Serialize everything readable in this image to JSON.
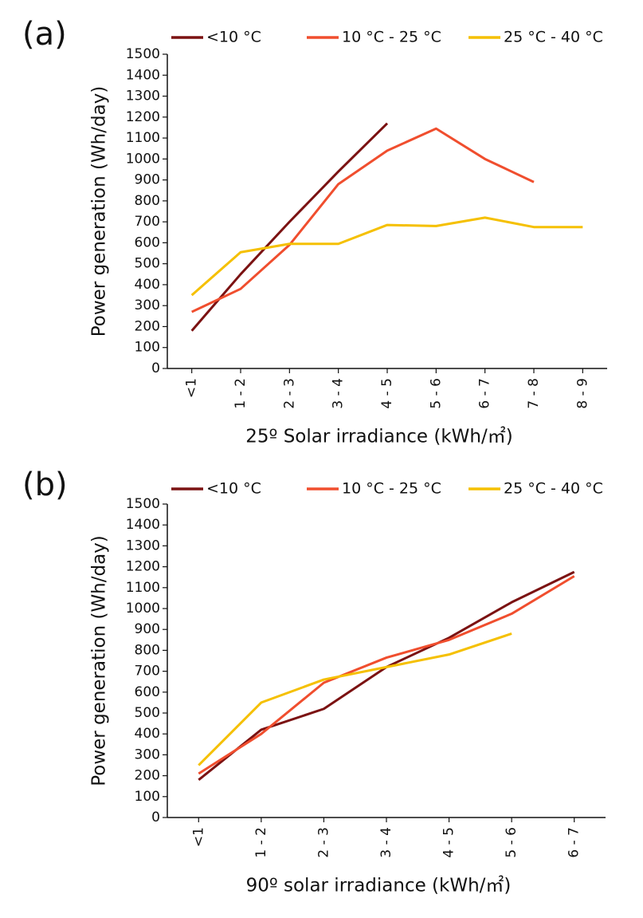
{
  "chart_data": [
    {
      "type": "line",
      "panel_label": "(a)",
      "x_label": "25º Solar irradiance (kWh/㎡)",
      "y_label": "Power generation (Wh/day)",
      "categories": [
        "<1",
        "1 - 2",
        "2 - 3",
        "3 - 4",
        "4 - 5",
        "5 - 6",
        "6 - 7",
        "7 - 8",
        "8 - 9"
      ],
      "series": [
        {
          "name": "<10 °C",
          "color": "#7b1212",
          "values": [
            180,
            450,
            700,
            940,
            1170,
            null,
            null,
            null,
            null
          ]
        },
        {
          "name": "10 °C - 25 °C",
          "color": "#f04e2e",
          "values": [
            270,
            380,
            590,
            880,
            1040,
            1145,
            1000,
            890,
            null
          ]
        },
        {
          "name": "25 °C - 40 °C",
          "color": "#f5c000",
          "values": [
            350,
            555,
            595,
            595,
            685,
            680,
            720,
            675,
            675
          ]
        }
      ],
      "ylim": [
        0,
        1500
      ],
      "yticks": [
        0,
        100,
        200,
        300,
        400,
        500,
        600,
        700,
        800,
        900,
        1000,
        1100,
        1200,
        1300,
        1400,
        1500
      ]
    },
    {
      "type": "line",
      "panel_label": "(b)",
      "x_label": "90º solar  irradiance (kWh/㎡)",
      "y_label": "Power generation (Wh/day)",
      "categories": [
        "<1",
        "1 - 2",
        "2 - 3",
        "3 - 4",
        "4 - 5",
        "5 - 6",
        "6 - 7"
      ],
      "series": [
        {
          "name": "<10 °C",
          "color": "#7b1212",
          "values": [
            180,
            420,
            520,
            720,
            860,
            1030,
            1175
          ]
        },
        {
          "name": "10 °C - 25 °C",
          "color": "#f04e2e",
          "values": [
            210,
            400,
            645,
            765,
            850,
            975,
            1155
          ]
        },
        {
          "name": "25 °C - 40 °C",
          "color": "#f5c000",
          "values": [
            250,
            550,
            660,
            720,
            780,
            880,
            null
          ]
        }
      ],
      "ylim": [
        0,
        1500
      ],
      "yticks": [
        0,
        100,
        200,
        300,
        400,
        500,
        600,
        700,
        800,
        900,
        1000,
        1100,
        1200,
        1300,
        1400,
        1500
      ]
    }
  ]
}
